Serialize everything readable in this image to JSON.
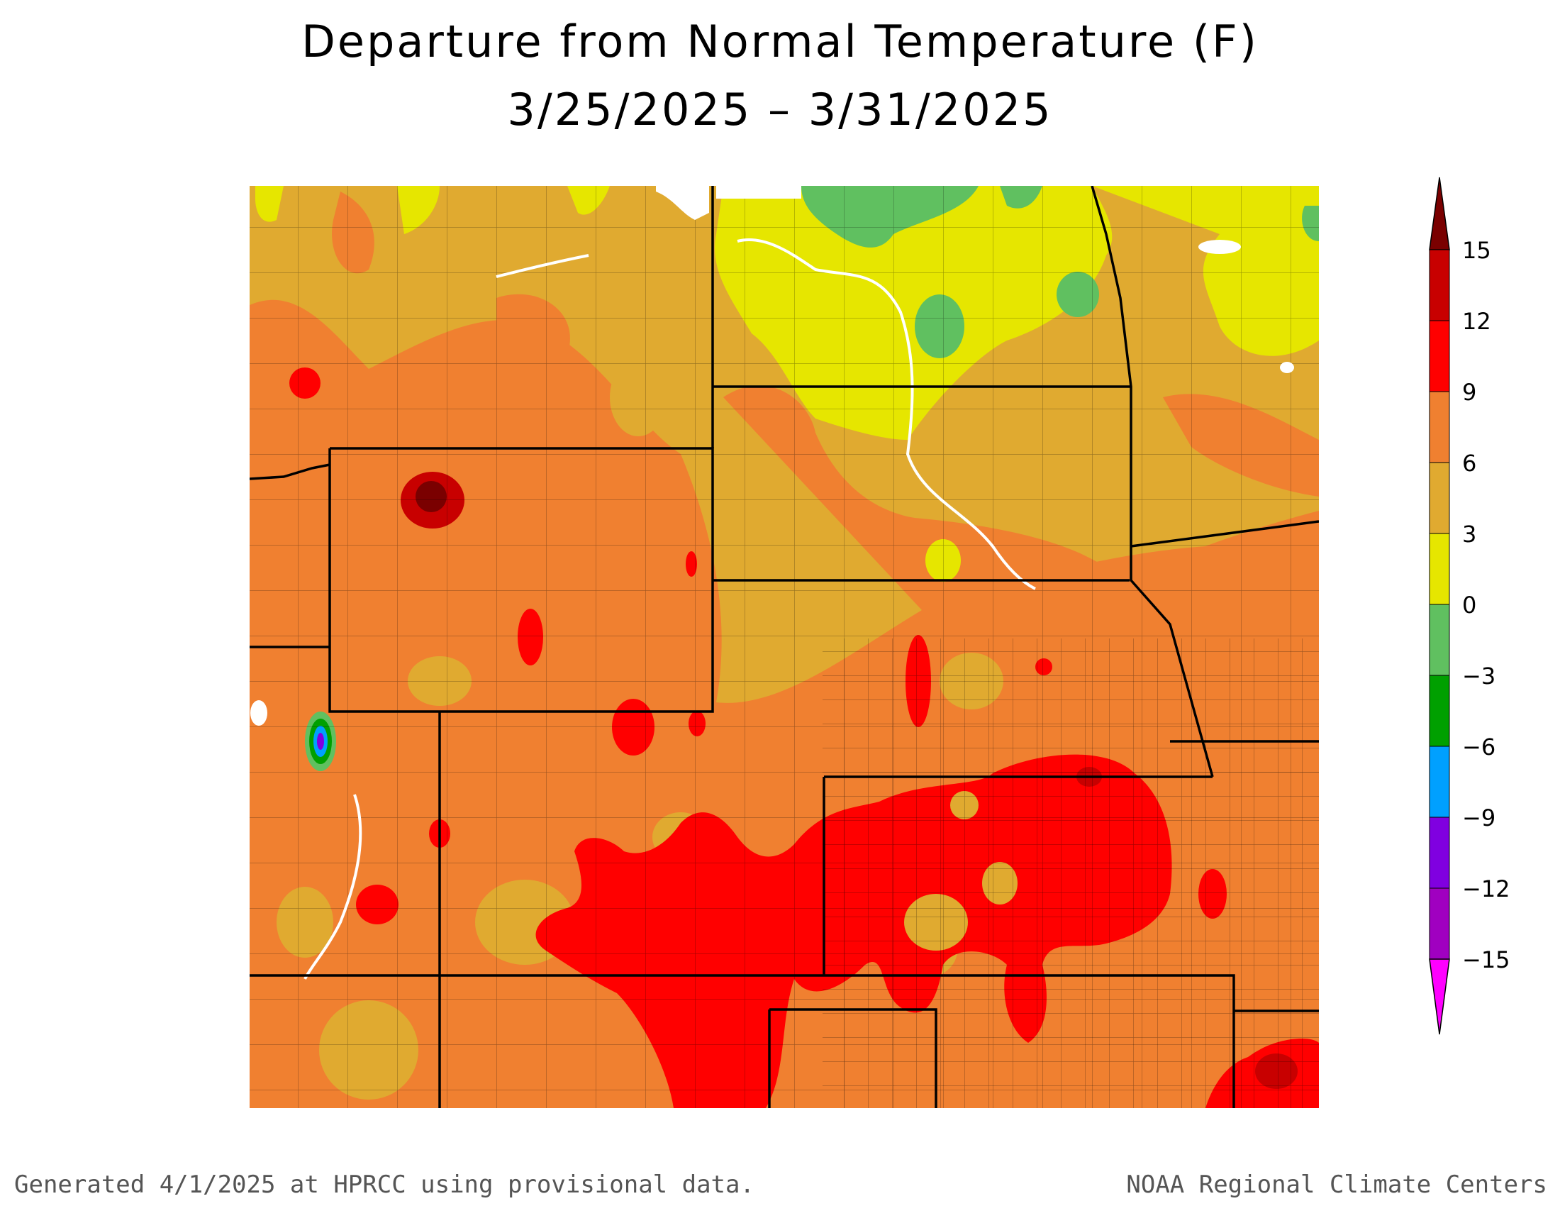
{
  "title": {
    "line1": "Departure from Normal Temperature (F)",
    "line2": "3/25/2025 – 3/31/2025"
  },
  "legend": {
    "labels": [
      "15",
      "12",
      "9",
      "6",
      "3",
      "0",
      "−3",
      "−6",
      "−9",
      "−12",
      "−15"
    ],
    "bands": [
      {
        "range": "> 15",
        "color": "#7a0000"
      },
      {
        "range": "12 to 15",
        "color": "#c80000"
      },
      {
        "range": "9 to 12",
        "color": "#ff0000"
      },
      {
        "range": "6 to 9",
        "color": "#f08030"
      },
      {
        "range": "3 to 6",
        "color": "#e0aa30"
      },
      {
        "range": "0 to 3",
        "color": "#e6e600"
      },
      {
        "range": "-3 to 0",
        "color": "#60c060"
      },
      {
        "range": "-6 to -3",
        "color": "#00a000"
      },
      {
        "range": "-9 to -6",
        "color": "#00a0ff"
      },
      {
        "range": "-12 to -9",
        "color": "#8000e0"
      },
      {
        "range": "-15 to -12",
        "color": "#a000c0"
      },
      {
        "range": "< -15",
        "color": "#ff00ff"
      }
    ]
  },
  "footer": {
    "left": "Generated 4/1/2025 at HPRCC using provisional data.",
    "right": "NOAA Regional Climate Centers"
  }
}
